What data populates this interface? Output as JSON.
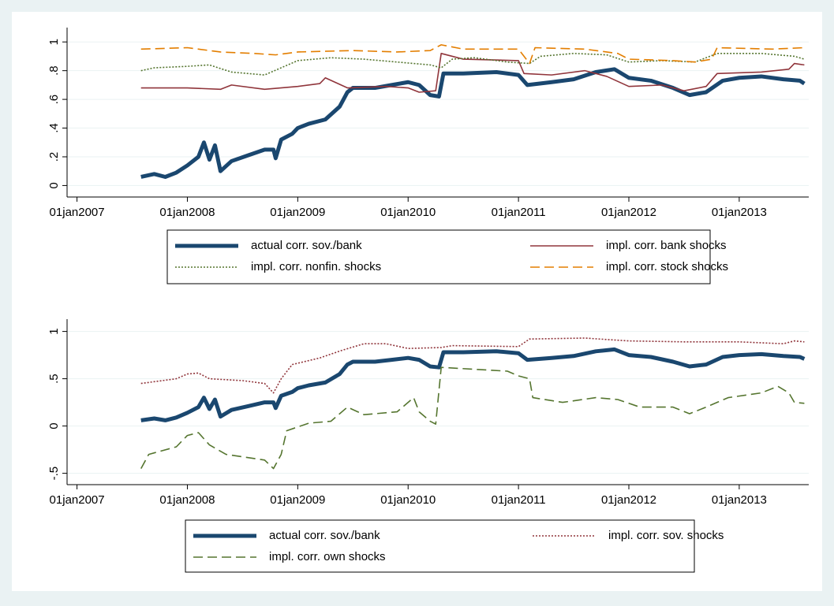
{
  "chart_data": [
    {
      "type": "line",
      "xlim": [
        2006.91,
        2013.63
      ],
      "xticks": [
        {
          "value": 2007,
          "label": "01jan2007"
        },
        {
          "value": 2008,
          "label": "01jan2008"
        },
        {
          "value": 2009,
          "label": "01jan2009"
        },
        {
          "value": 2010,
          "label": "01jan2010"
        },
        {
          "value": 2011,
          "label": "01jan2011"
        },
        {
          "value": 2012,
          "label": "01jan2012"
        },
        {
          "value": 2013,
          "label": "01jan2013"
        }
      ],
      "ylim": [
        -0.08,
        1.1
      ],
      "yticks": [
        0,
        {
          "value": 0.2,
          "label": ".2"
        },
        {
          "value": 0.4,
          "label": ".4"
        },
        {
          "value": 0.6,
          "label": ".6"
        },
        {
          "value": 0.8,
          "label": ".8"
        },
        1
      ],
      "grid": true,
      "series": [
        {
          "name": "actual corr. sov./bank",
          "color": "#1a476f",
          "style": "thick",
          "x": [
            2007.58,
            2007.7,
            2007.8,
            2007.9,
            2008.0,
            2008.1,
            2008.15,
            2008.2,
            2008.25,
            2008.3,
            2008.4,
            2008.55,
            2008.7,
            2008.78,
            2008.8,
            2008.85,
            2008.95,
            2009.0,
            2009.1,
            2009.25,
            2009.38,
            2009.45,
            2009.5,
            2009.7,
            2009.85,
            2010.0,
            2010.1,
            2010.2,
            2010.28,
            2010.32,
            2010.5,
            2010.8,
            2011.0,
            2011.08,
            2011.3,
            2011.5,
            2011.7,
            2011.87,
            2012.0,
            2012.2,
            2012.4,
            2012.55,
            2012.7,
            2012.85,
            2013.0,
            2013.2,
            2013.4,
            2013.55,
            2013.59
          ],
          "values": [
            0.06,
            0.08,
            0.06,
            0.09,
            0.14,
            0.2,
            0.3,
            0.18,
            0.28,
            0.1,
            0.17,
            0.21,
            0.25,
            0.25,
            0.19,
            0.32,
            0.36,
            0.4,
            0.43,
            0.46,
            0.55,
            0.65,
            0.68,
            0.68,
            0.7,
            0.72,
            0.7,
            0.63,
            0.62,
            0.78,
            0.78,
            0.79,
            0.77,
            0.7,
            0.72,
            0.74,
            0.79,
            0.81,
            0.75,
            0.73,
            0.68,
            0.63,
            0.65,
            0.73,
            0.75,
            0.76,
            0.74,
            0.73,
            0.71
          ]
        },
        {
          "name": "impl. corr. bank shocks",
          "color": "#90353b",
          "style": "solid",
          "x": [
            2007.58,
            2008.0,
            2008.3,
            2008.4,
            2008.7,
            2009.0,
            2009.2,
            2009.25,
            2009.45,
            2009.8,
            2010.0,
            2010.1,
            2010.25,
            2010.3,
            2010.5,
            2011.0,
            2011.05,
            2011.3,
            2011.6,
            2011.8,
            2012.0,
            2012.3,
            2012.5,
            2012.7,
            2012.8,
            2013.2,
            2013.45,
            2013.5,
            2013.59
          ],
          "values": [
            0.68,
            0.68,
            0.67,
            0.7,
            0.67,
            0.69,
            0.71,
            0.75,
            0.68,
            0.69,
            0.68,
            0.65,
            0.66,
            0.92,
            0.88,
            0.87,
            0.78,
            0.77,
            0.8,
            0.76,
            0.69,
            0.7,
            0.66,
            0.69,
            0.78,
            0.79,
            0.81,
            0.85,
            0.84
          ]
        },
        {
          "name": "impl. corr. nonfin. shocks",
          "color": "#55752f",
          "style": "dotted",
          "x": [
            2007.58,
            2007.7,
            2008.0,
            2008.2,
            2008.4,
            2008.7,
            2008.85,
            2009.0,
            2009.3,
            2009.6,
            2009.9,
            2010.2,
            2010.3,
            2010.4,
            2010.6,
            2010.9,
            2011.1,
            2011.2,
            2011.5,
            2011.8,
            2012.0,
            2012.3,
            2012.6,
            2012.8,
            2013.2,
            2013.5,
            2013.59
          ],
          "values": [
            0.8,
            0.82,
            0.83,
            0.84,
            0.79,
            0.77,
            0.82,
            0.87,
            0.89,
            0.88,
            0.86,
            0.84,
            0.82,
            0.88,
            0.89,
            0.86,
            0.85,
            0.9,
            0.92,
            0.91,
            0.86,
            0.87,
            0.86,
            0.92,
            0.92,
            0.9,
            0.88
          ]
        },
        {
          "name": "impl. corr. stock shocks",
          "color": "#e37e00",
          "style": "dashed",
          "x": [
            2007.58,
            2008.0,
            2008.3,
            2008.6,
            2008.8,
            2009.0,
            2009.5,
            2009.9,
            2010.2,
            2010.3,
            2010.5,
            2011.0,
            2011.1,
            2011.15,
            2011.6,
            2011.9,
            2012.0,
            2012.4,
            2012.6,
            2012.75,
            2012.8,
            2013.3,
            2013.59
          ],
          "values": [
            0.95,
            0.96,
            0.93,
            0.92,
            0.91,
            0.93,
            0.94,
            0.93,
            0.94,
            0.98,
            0.95,
            0.95,
            0.85,
            0.96,
            0.95,
            0.92,
            0.88,
            0.87,
            0.86,
            0.88,
            0.96,
            0.95,
            0.96
          ]
        }
      ]
    },
    {
      "type": "line",
      "xlim": [
        2006.91,
        2013.63
      ],
      "xticks": [
        {
          "value": 2007,
          "label": "01jan2007"
        },
        {
          "value": 2008,
          "label": "01jan2008"
        },
        {
          "value": 2009,
          "label": "01jan2009"
        },
        {
          "value": 2010,
          "label": "01jan2010"
        },
        {
          "value": 2011,
          "label": "01jan2011"
        },
        {
          "value": 2012,
          "label": "01jan2012"
        },
        {
          "value": 2013,
          "label": "01jan2013"
        }
      ],
      "ylim": [
        -0.62,
        1.13
      ],
      "yticks": [
        {
          "value": -0.5,
          "label": "-.5"
        },
        0,
        {
          "value": 0.5,
          "label": ".5"
        },
        1
      ],
      "grid": true,
      "series": [
        {
          "name": "actual corr. sov./bank",
          "color": "#1a476f",
          "style": "thick",
          "x": [
            2007.58,
            2007.7,
            2007.8,
            2007.9,
            2008.0,
            2008.1,
            2008.15,
            2008.2,
            2008.25,
            2008.3,
            2008.4,
            2008.55,
            2008.7,
            2008.78,
            2008.8,
            2008.85,
            2008.95,
            2009.0,
            2009.1,
            2009.25,
            2009.38,
            2009.45,
            2009.5,
            2009.7,
            2009.85,
            2010.0,
            2010.1,
            2010.2,
            2010.28,
            2010.32,
            2010.5,
            2010.8,
            2011.0,
            2011.08,
            2011.3,
            2011.5,
            2011.7,
            2011.87,
            2012.0,
            2012.2,
            2012.4,
            2012.55,
            2012.7,
            2012.85,
            2013.0,
            2013.2,
            2013.4,
            2013.55,
            2013.59
          ],
          "values": [
            0.06,
            0.08,
            0.06,
            0.09,
            0.14,
            0.2,
            0.3,
            0.18,
            0.28,
            0.1,
            0.17,
            0.21,
            0.25,
            0.25,
            0.19,
            0.32,
            0.36,
            0.4,
            0.43,
            0.46,
            0.55,
            0.65,
            0.68,
            0.68,
            0.7,
            0.72,
            0.7,
            0.63,
            0.62,
            0.78,
            0.78,
            0.79,
            0.77,
            0.7,
            0.72,
            0.74,
            0.79,
            0.81,
            0.75,
            0.73,
            0.68,
            0.63,
            0.65,
            0.73,
            0.75,
            0.76,
            0.74,
            0.73,
            0.71
          ]
        },
        {
          "name": "impl. corr. sov. shocks",
          "color": "#90353b",
          "style": "dotted",
          "x": [
            2007.58,
            2007.9,
            2008.0,
            2008.1,
            2008.2,
            2008.5,
            2008.7,
            2008.78,
            2008.85,
            2008.95,
            2009.2,
            2009.4,
            2009.6,
            2009.8,
            2010.0,
            2010.3,
            2010.4,
            2011.0,
            2011.1,
            2011.6,
            2012.0,
            2012.5,
            2013.0,
            2013.4,
            2013.5,
            2013.59
          ],
          "values": [
            0.45,
            0.5,
            0.55,
            0.56,
            0.5,
            0.48,
            0.45,
            0.35,
            0.5,
            0.65,
            0.72,
            0.8,
            0.87,
            0.87,
            0.82,
            0.83,
            0.85,
            0.84,
            0.92,
            0.93,
            0.9,
            0.89,
            0.89,
            0.87,
            0.9,
            0.89
          ]
        },
        {
          "name": "impl. corr. own shocks",
          "color": "#55752f",
          "style": "dashed",
          "x": [
            2007.58,
            2007.65,
            2007.9,
            2008.0,
            2008.1,
            2008.2,
            2008.35,
            2008.7,
            2008.78,
            2008.85,
            2008.9,
            2009.1,
            2009.3,
            2009.45,
            2009.6,
            2009.9,
            2010.0,
            2010.05,
            2010.1,
            2010.2,
            2010.25,
            2010.3,
            2010.6,
            2010.9,
            2011.0,
            2011.1,
            2011.13,
            2011.4,
            2011.7,
            2011.9,
            2012.1,
            2012.4,
            2012.55,
            2012.7,
            2012.9,
            2013.2,
            2013.35,
            2013.45,
            2013.5,
            2013.59
          ],
          "values": [
            -0.45,
            -0.3,
            -0.22,
            -0.1,
            -0.07,
            -0.2,
            -0.3,
            -0.36,
            -0.45,
            -0.3,
            -0.05,
            0.03,
            0.05,
            0.2,
            0.12,
            0.15,
            0.25,
            0.3,
            0.15,
            0.05,
            0.02,
            0.62,
            0.6,
            0.58,
            0.53,
            0.5,
            0.3,
            0.25,
            0.3,
            0.28,
            0.2,
            0.2,
            0.13,
            0.2,
            0.3,
            0.35,
            0.42,
            0.35,
            0.25,
            0.24
          ]
        }
      ]
    }
  ]
}
